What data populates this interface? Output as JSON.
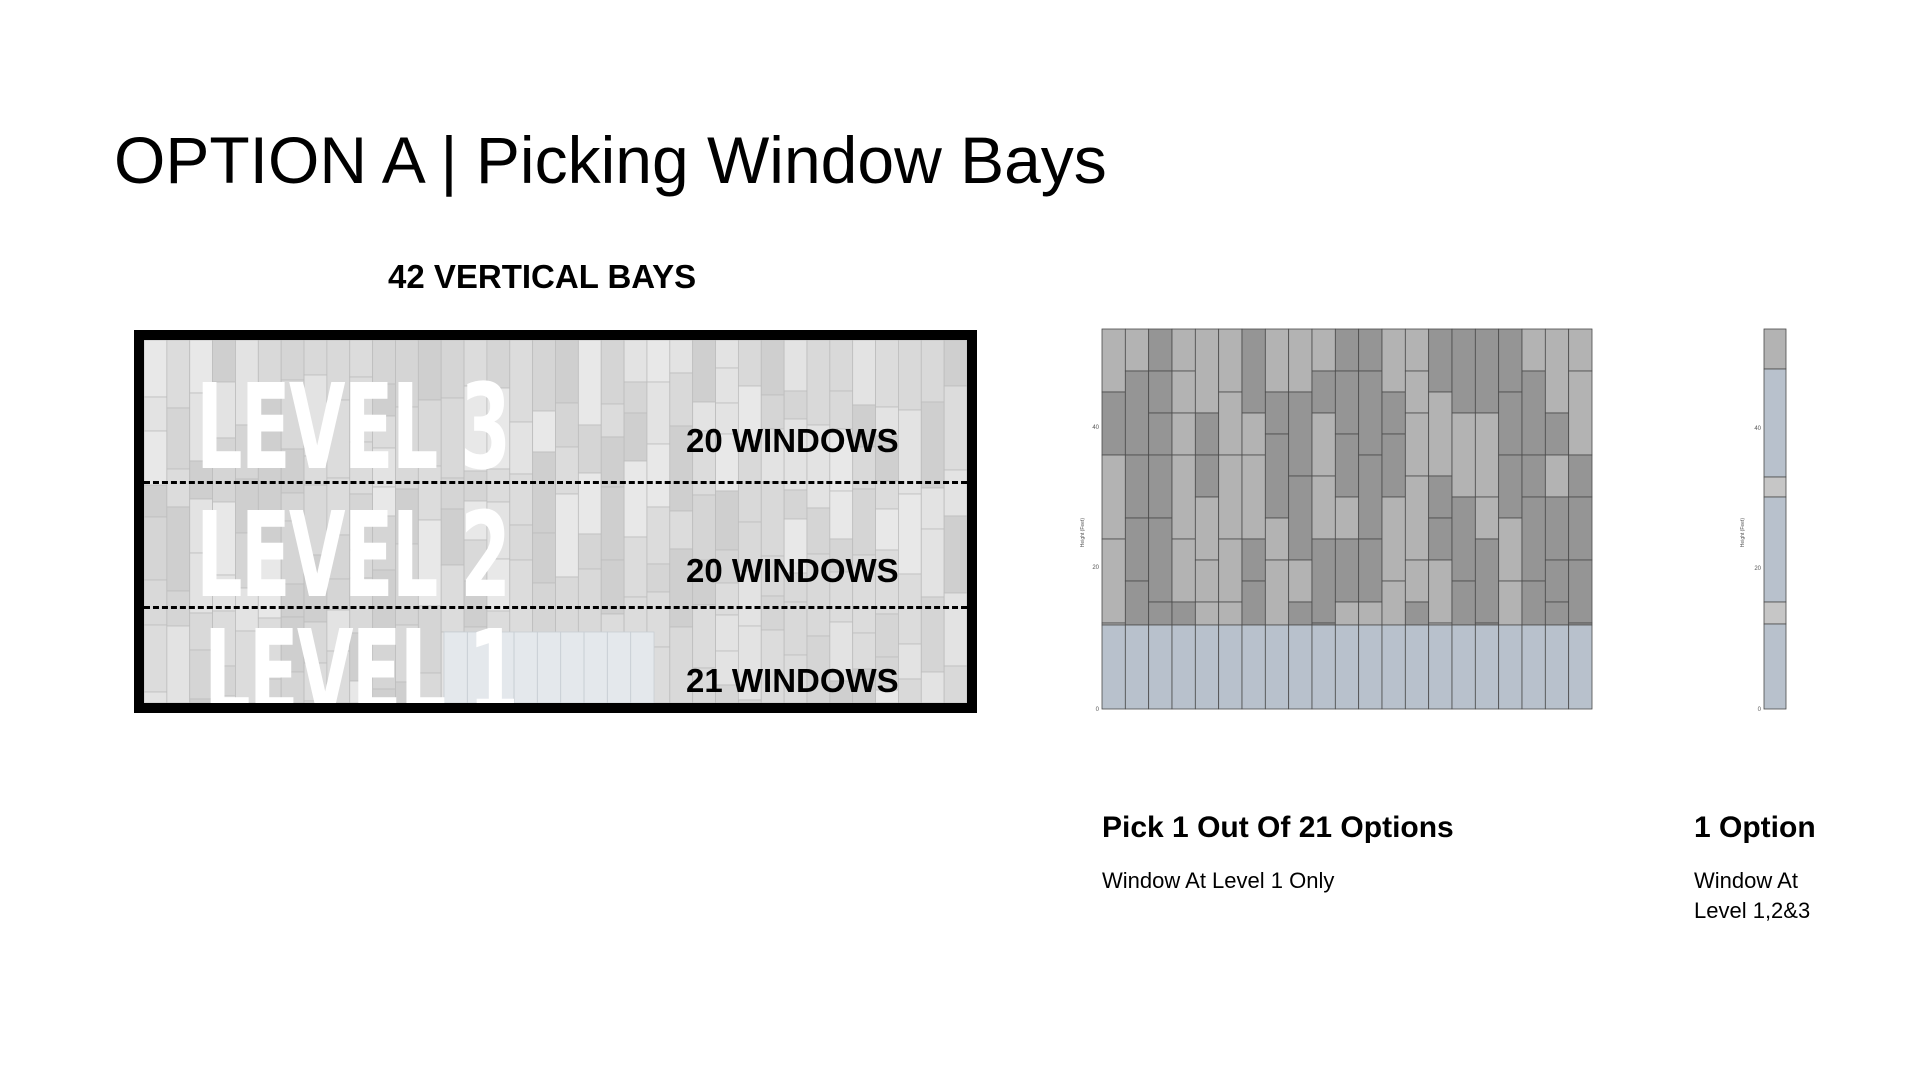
{
  "slide": {
    "title": "OPTION A | Picking Window Bays",
    "bays_heading": "42 VERTICAL BAYS"
  },
  "facade": {
    "levels": [
      {
        "name": "LEVEL 3",
        "windows_label": "20 WINDOWS"
      },
      {
        "name": "LEVEL 2",
        "windows_label": "20 WINDOWS"
      },
      {
        "name": "LEVEL 1",
        "windows_label": "21 WINDOWS"
      }
    ]
  },
  "options": [
    {
      "title": "Pick 1 Out Of 21 Options",
      "description": "Window At Level 1 Only"
    },
    {
      "title": "1 Option",
      "description_line1": "Window At",
      "description_line2": "Level 1,2&3"
    }
  ],
  "elevation_charts": {
    "y_ticks": [
      "0",
      "20",
      "40"
    ],
    "y_label": "Height (Feet)"
  },
  "colors": {
    "window": "#b8c1cc",
    "panel_dark": "#959595",
    "panel_light": "#b3b3b3",
    "panel_lighter": "#c6c6c6",
    "grid_line": "#4a4a4a",
    "facade_border": "#000000"
  }
}
